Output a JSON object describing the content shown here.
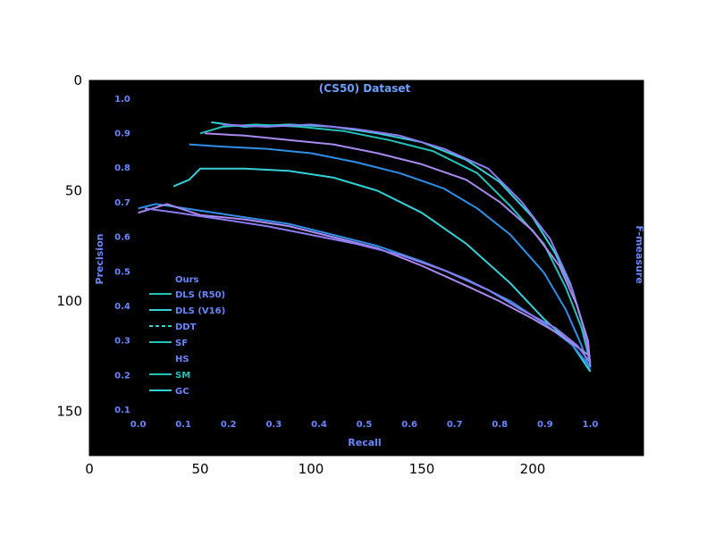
{
  "axes": {
    "x_ticks": [
      0,
      50,
      100,
      150,
      200
    ],
    "y_ticks": [
      0,
      50,
      100,
      150
    ],
    "xlim": [
      0,
      250
    ],
    "ylim": [
      170,
      0
    ]
  },
  "embedded_plot": {
    "title": "(CS50) Dataset",
    "xlabel": "Recall",
    "ylabel": "Precision",
    "right_label": "F-measure",
    "x_ticks": [
      "0.0",
      "0.1",
      "0.2",
      "0.3",
      "0.4",
      "0.5",
      "0.6",
      "0.7",
      "0.8",
      "0.9",
      "1.0"
    ],
    "y_ticks": [
      "1.0",
      "0.9",
      "0.8",
      "0.7",
      "0.6",
      "0.5",
      "0.4",
      "0.3",
      "0.2",
      "0.1"
    ],
    "legend_title": "Ours",
    "legend_entries": [
      "DLS (R50)",
      "DLS (V16)",
      "DDT",
      "SF",
      "HS",
      "SM",
      "GC"
    ],
    "colors": {
      "background": "#000000",
      "cyan": "#35d0d8",
      "teal": "#22c2bc",
      "blue": "#2e8fe8",
      "violet": "#8a7cf0",
      "lilac": "#a98af0",
      "text": "#6a86ff",
      "title": "#6aa0ff"
    }
  },
  "chart_data": {
    "type": "line",
    "xlabel": "",
    "ylabel": "",
    "xlim": [
      0,
      250
    ],
    "ylim": [
      170,
      0
    ],
    "series": [
      {
        "color": "#35d0d8",
        "x": [
          55,
          70,
          90,
          110,
          130,
          150,
          170,
          185,
          200,
          210,
          218,
          223,
          226
        ],
        "y": [
          19,
          21,
          20,
          21,
          24,
          28,
          36,
          46,
          62,
          78,
          95,
          112,
          130
        ]
      },
      {
        "color": "#22c2bc",
        "x": [
          50,
          60,
          75,
          95,
          115,
          135,
          155,
          175,
          190,
          205,
          215,
          222,
          226
        ],
        "y": [
          24,
          21,
          20,
          21,
          23,
          27,
          32,
          42,
          57,
          74,
          94,
          112,
          128
        ]
      },
      {
        "color": "#8a7cf0",
        "x": [
          60,
          80,
          100,
          120,
          140,
          160,
          180,
          195,
          208,
          217,
          223,
          226
        ],
        "y": [
          20,
          21,
          20,
          22,
          25,
          31,
          40,
          55,
          72,
          92,
          112,
          128
        ]
      },
      {
        "color": "#a98af0",
        "x": [
          52,
          70,
          90,
          110,
          130,
          150,
          170,
          185,
          200,
          212,
          220,
          225,
          226
        ],
        "y": [
          24,
          25,
          27,
          29,
          33,
          38,
          45,
          55,
          68,
          84,
          102,
          118,
          130
        ]
      },
      {
        "color": "#2e8fe8",
        "x": [
          45,
          60,
          80,
          100,
          120,
          140,
          160,
          175,
          190,
          205,
          215,
          222,
          226
        ],
        "y": [
          29,
          30,
          31,
          33,
          37,
          42,
          49,
          58,
          70,
          87,
          104,
          120,
          132
        ]
      },
      {
        "color": "#35d0d8",
        "x": [
          38,
          45,
          50,
          70,
          90,
          110,
          130,
          150,
          170,
          190,
          205,
          218,
          226
        ],
        "y": [
          48,
          45,
          40,
          40,
          41,
          44,
          50,
          60,
          74,
          92,
          108,
          120,
          132
        ]
      },
      {
        "color": "#2e8fe8",
        "x": [
          22,
          30,
          50,
          70,
          90,
          110,
          130,
          150,
          170,
          190,
          205,
          218,
          226
        ],
        "y": [
          58,
          56,
          59,
          62,
          65,
          70,
          75,
          82,
          90,
          100,
          110,
          120,
          130
        ]
      },
      {
        "color": "#a98af0",
        "x": [
          22,
          35,
          50,
          70,
          90,
          110,
          130,
          150,
          170,
          185,
          200,
          212,
          226
        ],
        "y": [
          60,
          56,
          61,
          63,
          66,
          71,
          76,
          84,
          93,
          100,
          108,
          115,
          125
        ]
      },
      {
        "color": "#8a7cf0",
        "x": [
          25,
          40,
          60,
          80,
          100,
          120,
          140,
          160,
          180,
          195,
          210,
          220,
          226
        ],
        "y": [
          58,
          60,
          63,
          66,
          70,
          74,
          79,
          86,
          95,
          104,
          112,
          120,
          128
        ]
      }
    ]
  }
}
